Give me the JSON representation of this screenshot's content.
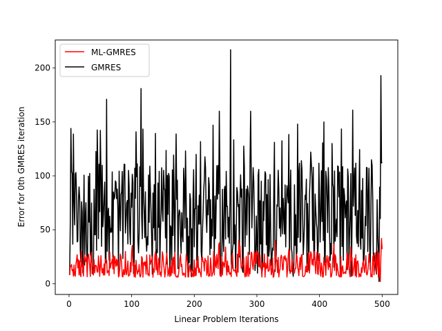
{
  "chart_data": {
    "type": "line",
    "xlabel": "Linear Problem Iterations",
    "ylabel": "Error for 0th GMRES iteration",
    "xlim": [
      -22,
      525
    ],
    "ylim": [
      -10,
      226
    ],
    "xticks": [
      0,
      100,
      200,
      300,
      400,
      500
    ],
    "yticks": [
      0,
      50,
      100,
      150,
      200
    ],
    "grid": false,
    "legend_position": "upper-left",
    "n_points": 500,
    "series": [
      {
        "name": "ML-GMRES",
        "color": "#ff0000",
        "typical_range": [
          2,
          42
        ],
        "anchor_points": [
          [
            1,
            8
          ],
          [
            5,
            12
          ],
          [
            20,
            30
          ],
          [
            60,
            22
          ],
          [
            100,
            30
          ],
          [
            150,
            26
          ],
          [
            200,
            22
          ],
          [
            250,
            34
          ],
          [
            300,
            30
          ],
          [
            330,
            40
          ],
          [
            400,
            28
          ],
          [
            450,
            34
          ],
          [
            497,
            2
          ],
          [
            499,
            42
          ],
          [
            500,
            32
          ]
        ]
      },
      {
        "name": "GMRES",
        "color": "#000000",
        "typical_range": [
          5,
          130
        ],
        "anchor_points": [
          [
            1,
            8
          ],
          [
            3,
            144
          ],
          [
            5,
            102
          ],
          [
            60,
            171
          ],
          [
            115,
            181
          ],
          [
            230,
            147
          ],
          [
            240,
            160
          ],
          [
            258,
            217
          ],
          [
            290,
            160
          ],
          [
            365,
            148
          ],
          [
            407,
            150
          ],
          [
            420,
            130
          ],
          [
            453,
            161
          ],
          [
            495,
            2
          ],
          [
            498,
            193
          ],
          [
            500,
            113
          ]
        ]
      }
    ]
  }
}
